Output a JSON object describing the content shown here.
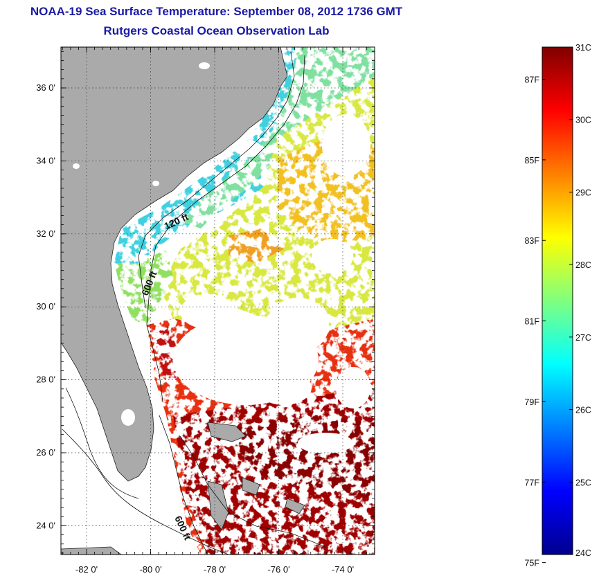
{
  "header": {
    "title": "NOAA-19 Sea Surface Temperature:  September 08, 2012 1736 GMT",
    "subtitle": "Rutgers Coastal Ocean Observation Lab"
  },
  "map": {
    "lat_ticks": [
      {
        "value": 36,
        "label": "36 0'"
      },
      {
        "value": 34,
        "label": "34 0'"
      },
      {
        "value": 32,
        "label": "32 0'"
      },
      {
        "value": 30,
        "label": "30 0'"
      },
      {
        "value": 28,
        "label": "28 0'"
      },
      {
        "value": 26,
        "label": "26 0'"
      },
      {
        "value": 24,
        "label": "24 0'"
      }
    ],
    "lon_ticks": [
      {
        "value": -82,
        "label": "-82 0'"
      },
      {
        "value": -80,
        "label": "-80 0'"
      },
      {
        "value": -78,
        "label": "-78 0'"
      },
      {
        "value": -76,
        "label": "-76 0'"
      },
      {
        "value": -74,
        "label": "-74 0'"
      }
    ],
    "depth_labels": {
      "shelf": "120 ft",
      "slope_north": "600 ft",
      "slope_south": "600 ft"
    },
    "colors": {
      "land": "#aaaaaa",
      "no_data": "#ffffff",
      "warm": "#b00000",
      "cool": "#30c0e0"
    }
  },
  "colorbar": {
    "min_c": 24,
    "max_c": 31,
    "celsius_labels": [
      "31C",
      "30C",
      "29C",
      "28C",
      "27C",
      "26C",
      "25C",
      "24C"
    ],
    "fahrenheit_labels": [
      "87F",
      "85F",
      "83F",
      "81F",
      "79F",
      "77F",
      "75F"
    ]
  }
}
